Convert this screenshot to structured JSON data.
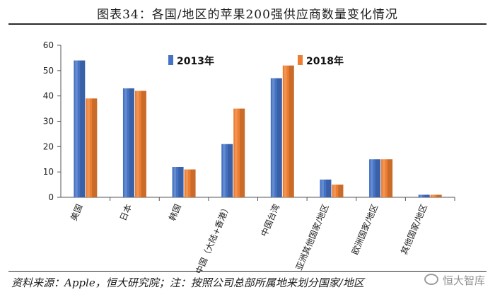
{
  "title": "图表34：各国/地区的苹果200强供应商数量变化情况",
  "source": "资料来源：Apple，恒大研究院；注：按照公司总部所属地来划分国家/地区",
  "watermark": "恒大智库",
  "colors": {
    "series_2013": "#4472C4",
    "series_2018": "#ED7D31",
    "axis": "#555555"
  },
  "chart_data": {
    "type": "bar",
    "categories": [
      "美国",
      "日本",
      "韩国",
      "中国（大陆+香港）",
      "中国台湾",
      "亚洲其他国家/地区",
      "欧洲国家/地区",
      "其他国家/地区"
    ],
    "series": [
      {
        "name": "2013年",
        "values": [
          54,
          43,
          12,
          21,
          47,
          7,
          15,
          1
        ]
      },
      {
        "name": "2018年",
        "values": [
          39,
          42,
          11,
          35,
          52,
          5,
          15,
          1
        ]
      }
    ],
    "ylim": [
      0,
      60
    ],
    "yticks": [
      0,
      10,
      20,
      30,
      40,
      50,
      60
    ],
    "grid": false,
    "legend": "top-center"
  }
}
